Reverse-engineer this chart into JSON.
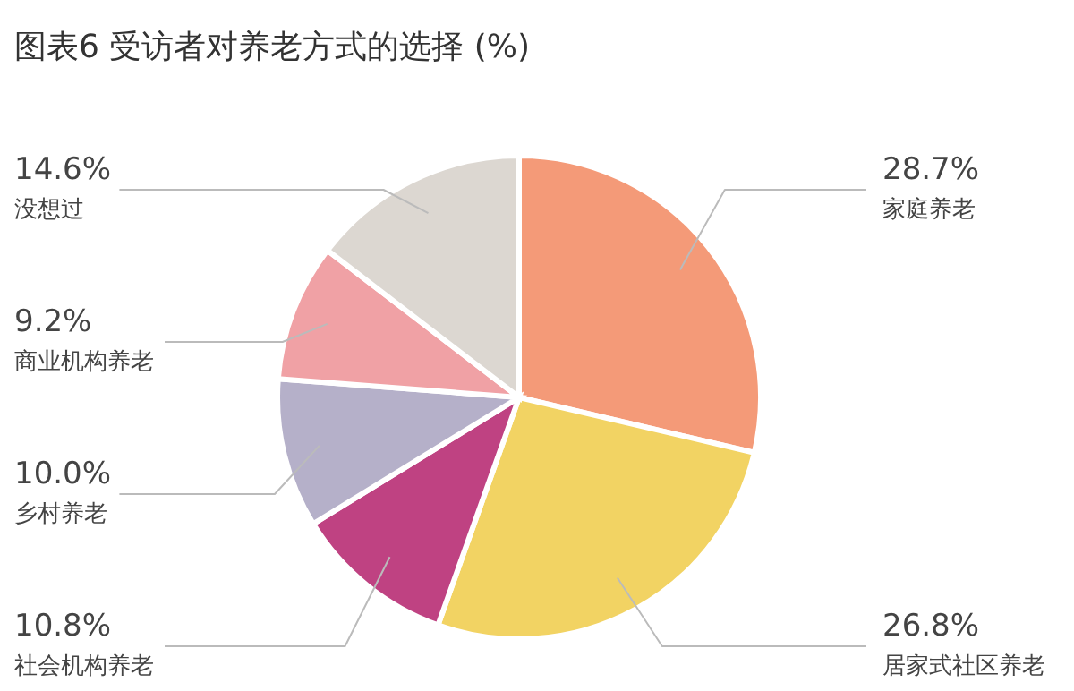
{
  "chart_data": {
    "type": "pie",
    "title": "图表6 受访者对养老方式的选择 (%)",
    "categories": [
      "家庭养老",
      "居家式社区养老",
      "社会机构养老",
      "乡村养老",
      "商业机构养老",
      "没想过"
    ],
    "values": [
      28.7,
      26.8,
      10.8,
      10.0,
      9.2,
      14.6
    ],
    "value_labels": [
      "28.7%",
      "26.8%",
      "10.8%",
      "10.0%",
      "9.2%",
      "14.6%"
    ],
    "colors": [
      "#f49a78",
      "#f2d363",
      "#bf4282",
      "#b5b0c9",
      "#f0a1a5",
      "#dcd7d1"
    ]
  }
}
